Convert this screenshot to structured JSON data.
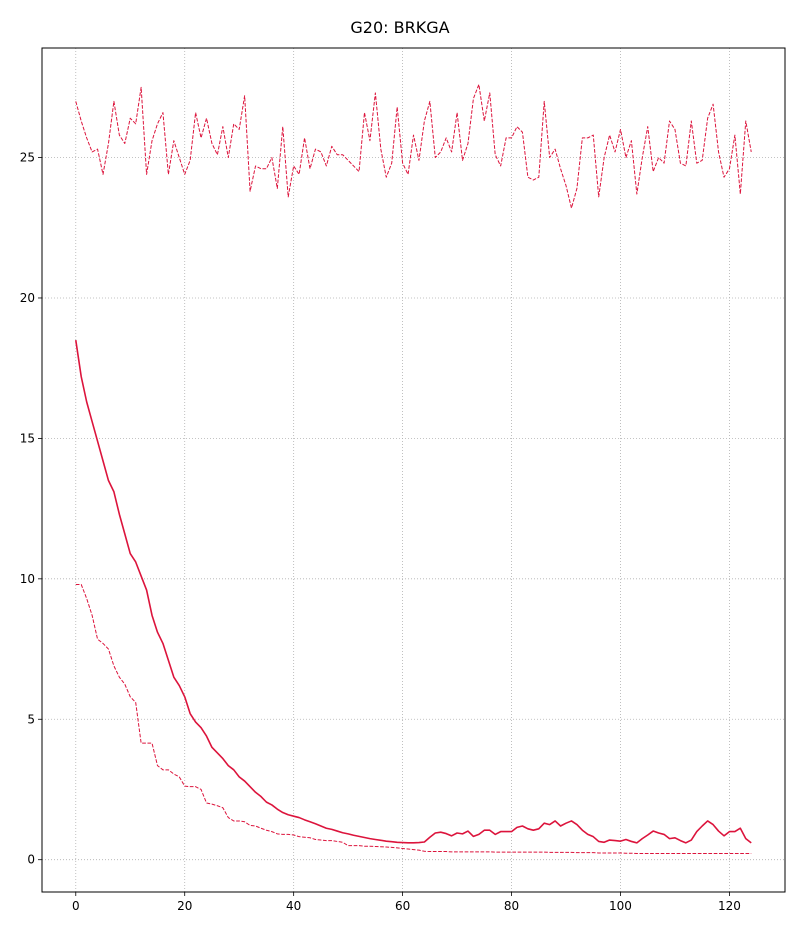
{
  "chart_data": {
    "type": "line",
    "title": "G20: BRKGA",
    "xlabel": "",
    "ylabel": "",
    "xlim": [
      -6.2,
      130.2
    ],
    "ylim": [
      -1.15,
      28.9
    ],
    "xticks": [
      0,
      20,
      40,
      60,
      80,
      100,
      120
    ],
    "yticks": [
      0,
      5,
      10,
      15,
      20,
      25
    ],
    "grid": true,
    "legend": "none",
    "color": "#dc143c",
    "series": [
      {
        "style": "dashed",
        "x": [
          0,
          1,
          2,
          3,
          4,
          5,
          6,
          7,
          8,
          9,
          10,
          11,
          12,
          13,
          14,
          15,
          16,
          17,
          18,
          19,
          20,
          21,
          22,
          23,
          24,
          25,
          26,
          27,
          28,
          29,
          30,
          31,
          32,
          33,
          34,
          35,
          36,
          37,
          38,
          39,
          40,
          41,
          42,
          43,
          44,
          45,
          46,
          47,
          48,
          49,
          50,
          51,
          52,
          53,
          54,
          55,
          56,
          57,
          58,
          59,
          60,
          61,
          62,
          63,
          64,
          65,
          66,
          67,
          68,
          69,
          70,
          71,
          72,
          73,
          74,
          75,
          76,
          77,
          78,
          79,
          80,
          81,
          82,
          83,
          84,
          85,
          86,
          87,
          88,
          89,
          90,
          91,
          92,
          93,
          94,
          95,
          96,
          97,
          98,
          99,
          100,
          101,
          102,
          103,
          104,
          105,
          106,
          107,
          108,
          109,
          110,
          111,
          112,
          113,
          114,
          115,
          116,
          117,
          118,
          119,
          120,
          121,
          122,
          123,
          124
        ],
        "y": [
          27.0,
          26.3,
          25.7,
          25.2,
          25.3,
          24.4,
          25.5,
          27.0,
          25.8,
          25.5,
          26.4,
          26.2,
          27.5,
          24.4,
          25.6,
          26.2,
          26.6,
          24.4,
          25.6,
          25.0,
          24.4,
          24.9,
          26.6,
          25.7,
          26.4,
          25.5,
          25.1,
          26.1,
          25.0,
          26.2,
          26.0,
          27.2,
          23.8,
          24.7,
          24.6,
          24.6,
          25.0,
          23.9,
          26.1,
          23.6,
          24.7,
          24.4,
          25.7,
          24.6,
          25.3,
          25.2,
          24.7,
          25.4,
          25.1,
          25.1,
          24.9,
          24.7,
          24.5,
          26.6,
          25.6,
          27.3,
          25.3,
          24.3,
          24.8,
          26.8,
          24.8,
          24.4,
          25.8,
          24.9,
          26.3,
          27.0,
          25.0,
          25.2,
          25.7,
          25.2,
          26.6,
          24.9,
          25.5,
          27.1,
          27.6,
          26.3,
          27.3,
          25.1,
          24.7,
          25.7,
          25.7,
          26.1,
          25.9,
          24.3,
          24.2,
          24.3,
          27.0,
          25.0,
          25.3,
          24.6,
          24.0,
          23.2,
          23.9,
          25.7,
          25.7,
          25.8,
          23.6,
          25.0,
          25.8,
          25.2,
          26.0,
          25.0,
          25.6,
          23.7,
          25.0,
          26.1,
          24.5,
          25.0,
          24.8,
          26.3,
          26.0,
          24.8,
          24.7,
          26.3,
          24.8,
          24.9,
          26.4,
          26.9,
          25.2,
          24.3,
          24.6,
          25.8,
          23.7,
          26.3,
          25.2
        ]
      },
      {
        "style": "solid",
        "x": [
          0,
          1,
          2,
          3,
          4,
          5,
          6,
          7,
          8,
          9,
          10,
          11,
          12,
          13,
          14,
          15,
          16,
          17,
          18,
          19,
          20,
          21,
          22,
          23,
          24,
          25,
          26,
          27,
          28,
          29,
          30,
          31,
          32,
          33,
          34,
          35,
          36,
          37,
          38,
          39,
          40,
          41,
          42,
          43,
          44,
          45,
          46,
          47,
          48,
          49,
          50,
          51,
          52,
          53,
          54,
          55,
          56,
          57,
          58,
          59,
          60,
          61,
          62,
          63,
          64,
          65,
          66,
          67,
          68,
          69,
          70,
          71,
          72,
          73,
          74,
          75,
          76,
          77,
          78,
          79,
          80,
          81,
          82,
          83,
          84,
          85,
          86,
          87,
          88,
          89,
          90,
          91,
          92,
          93,
          94,
          95,
          96,
          97,
          98,
          99,
          100,
          101,
          102,
          103,
          104,
          105,
          106,
          107,
          108,
          109,
          110,
          111,
          112,
          113,
          114,
          115,
          116,
          117,
          118,
          119,
          120,
          121,
          122,
          123,
          124
        ],
        "y": [
          18.5,
          17.2,
          16.3,
          15.6,
          14.9,
          14.2,
          13.5,
          13.1,
          12.3,
          11.6,
          10.9,
          10.6,
          10.1,
          9.6,
          8.7,
          8.1,
          7.7,
          7.1,
          6.5,
          6.2,
          5.8,
          5.2,
          4.9,
          4.7,
          4.4,
          4.0,
          3.8,
          3.6,
          3.35,
          3.2,
          2.95,
          2.8,
          2.6,
          2.4,
          2.25,
          2.05,
          1.95,
          1.8,
          1.68,
          1.6,
          1.55,
          1.5,
          1.42,
          1.35,
          1.28,
          1.2,
          1.12,
          1.08,
          1.02,
          0.96,
          0.92,
          0.87,
          0.83,
          0.79,
          0.75,
          0.72,
          0.69,
          0.66,
          0.64,
          0.62,
          0.61,
          0.6,
          0.6,
          0.61,
          0.63,
          0.8,
          0.95,
          0.98,
          0.93,
          0.85,
          0.95,
          0.92,
          1.02,
          0.83,
          0.9,
          1.05,
          1.05,
          0.9,
          1.0,
          1.0,
          1.0,
          1.15,
          1.2,
          1.1,
          1.05,
          1.1,
          1.3,
          1.25,
          1.38,
          1.2,
          1.3,
          1.38,
          1.25,
          1.05,
          0.9,
          0.82,
          0.65,
          0.62,
          0.7,
          0.68,
          0.66,
          0.72,
          0.65,
          0.6,
          0.75,
          0.88,
          1.02,
          0.95,
          0.9,
          0.75,
          0.78,
          0.68,
          0.6,
          0.7,
          1.0,
          1.2,
          1.38,
          1.25,
          1.02,
          0.85,
          1.0,
          1.0,
          1.12,
          0.75,
          0.6
        ]
      },
      {
        "style": "dashed",
        "x": [
          0,
          1,
          2,
          3,
          4,
          5,
          6,
          7,
          8,
          9,
          10,
          11,
          12,
          13,
          14,
          15,
          16,
          17,
          18,
          19,
          20,
          21,
          22,
          23,
          24,
          25,
          26,
          27,
          28,
          29,
          30,
          31,
          32,
          33,
          34,
          35,
          36,
          37,
          38,
          39,
          40,
          41,
          42,
          43,
          44,
          45,
          46,
          47,
          48,
          49,
          50,
          51,
          52,
          53,
          54,
          55,
          56,
          57,
          58,
          59,
          60,
          61,
          62,
          63,
          64,
          65,
          66,
          67,
          68,
          69,
          70,
          71,
          72,
          73,
          74,
          75,
          76,
          77,
          78,
          79,
          80,
          81,
          82,
          83,
          84,
          85,
          86,
          87,
          88,
          89,
          90,
          91,
          92,
          93,
          94,
          95,
          96,
          97,
          98,
          99,
          100,
          101,
          102,
          103,
          104,
          105,
          106,
          107,
          108,
          109,
          110,
          111,
          112,
          113,
          114,
          115,
          116,
          117,
          118,
          119,
          120,
          121,
          122,
          123,
          124
        ],
        "y": [
          9.8,
          9.8,
          9.3,
          8.7,
          7.85,
          7.7,
          7.5,
          6.9,
          6.5,
          6.25,
          5.8,
          5.6,
          4.15,
          4.15,
          4.15,
          3.35,
          3.2,
          3.2,
          3.05,
          2.95,
          2.62,
          2.6,
          2.6,
          2.5,
          2.02,
          1.98,
          1.92,
          1.85,
          1.5,
          1.38,
          1.38,
          1.35,
          1.22,
          1.2,
          1.12,
          1.05,
          1.0,
          0.92,
          0.9,
          0.9,
          0.88,
          0.82,
          0.8,
          0.78,
          0.72,
          0.7,
          0.68,
          0.68,
          0.65,
          0.62,
          0.5,
          0.5,
          0.5,
          0.48,
          0.48,
          0.47,
          0.46,
          0.45,
          0.44,
          0.42,
          0.4,
          0.38,
          0.36,
          0.34,
          0.3,
          0.29,
          0.29,
          0.29,
          0.29,
          0.28,
          0.28,
          0.28,
          0.28,
          0.28,
          0.28,
          0.28,
          0.28,
          0.27,
          0.27,
          0.27,
          0.27,
          0.27,
          0.27,
          0.27,
          0.27,
          0.27,
          0.27,
          0.26,
          0.26,
          0.26,
          0.26,
          0.26,
          0.25,
          0.25,
          0.25,
          0.25,
          0.24,
          0.24,
          0.24,
          0.24,
          0.24,
          0.23,
          0.23,
          0.22,
          0.22,
          0.22,
          0.22,
          0.22,
          0.22,
          0.22,
          0.22,
          0.22,
          0.22,
          0.22,
          0.22,
          0.22,
          0.22,
          0.22,
          0.22,
          0.22,
          0.22,
          0.22,
          0.22,
          0.22,
          0.22
        ]
      }
    ]
  }
}
